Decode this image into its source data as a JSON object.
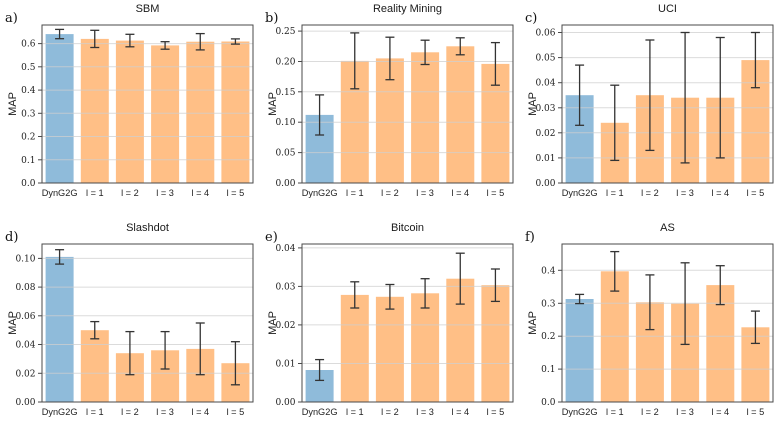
{
  "figure": {
    "ylabel": "MAP",
    "colors": {
      "bar_highlight": "#8fbbda",
      "bar_default": "#ffbf86",
      "error": "#333333",
      "grid": "#cfcfcf",
      "spine": "#4a4a4a"
    }
  },
  "chart_data": [
    {
      "type": "bar",
      "letter": "a)",
      "title": "SBM",
      "ylabel": "MAP",
      "categories": [
        "DynG2G",
        "l = 1",
        "l = 2",
        "l = 3",
        "l = 4",
        "l = 5"
      ],
      "values": [
        0.641,
        0.62,
        0.613,
        0.592,
        0.608,
        0.609
      ],
      "errors": [
        0.02,
        0.037,
        0.027,
        0.016,
        0.035,
        0.011
      ],
      "yticks": [
        0.0,
        0.1,
        0.2,
        0.3,
        0.4,
        0.5,
        0.6
      ],
      "ylim": [
        0,
        0.68
      ],
      "decimals": 1,
      "grid": true,
      "legend": "none"
    },
    {
      "type": "bar",
      "letter": "b)",
      "title": "Reality Mining",
      "ylabel": "MAP",
      "categories": [
        "DynG2G",
        "l = 1",
        "l = 2",
        "l = 3",
        "l = 4",
        "l = 5"
      ],
      "values": [
        0.112,
        0.201,
        0.205,
        0.215,
        0.225,
        0.196
      ],
      "errors": [
        0.033,
        0.046,
        0.035,
        0.02,
        0.014,
        0.035
      ],
      "yticks": [
        0.0,
        0.05,
        0.1,
        0.15,
        0.2,
        0.25
      ],
      "ylim": [
        0,
        0.26
      ],
      "decimals": 2,
      "grid": true,
      "legend": "none"
    },
    {
      "type": "bar",
      "letter": "c)",
      "title": "UCI",
      "ylabel": "MAP",
      "categories": [
        "DynG2G",
        "l = 1",
        "l = 2",
        "l = 3",
        "l = 4",
        "l = 5"
      ],
      "values": [
        0.035,
        0.024,
        0.035,
        0.034,
        0.034,
        0.049
      ],
      "errors": [
        0.012,
        0.015,
        0.022,
        0.026,
        0.024,
        0.011
      ],
      "yticks": [
        0.0,
        0.01,
        0.02,
        0.03,
        0.04,
        0.05,
        0.06
      ],
      "ylim": [
        0,
        0.063
      ],
      "decimals": 2,
      "grid": true,
      "legend": "none"
    },
    {
      "type": "bar",
      "letter": "d)",
      "title": "Slashdot",
      "ylabel": "MAP",
      "categories": [
        "DynG2G",
        "l = 1",
        "l = 2",
        "l = 3",
        "l = 4",
        "l = 5"
      ],
      "values": [
        0.101,
        0.05,
        0.034,
        0.036,
        0.037,
        0.027
      ],
      "errors": [
        0.005,
        0.006,
        0.015,
        0.013,
        0.018,
        0.015
      ],
      "yticks": [
        0.0,
        0.02,
        0.04,
        0.06,
        0.08,
        0.1
      ],
      "ylim": [
        0,
        0.11
      ],
      "decimals": 2,
      "grid": true,
      "legend": "none"
    },
    {
      "type": "bar",
      "letter": "e)",
      "title": "Bitcoin",
      "ylabel": "MAP",
      "categories": [
        "DynG2G",
        "l = 1",
        "l = 2",
        "l = 3",
        "l = 4",
        "l = 5"
      ],
      "values": [
        0.0083,
        0.0278,
        0.0273,
        0.0282,
        0.032,
        0.0303
      ],
      "errors": [
        0.0027,
        0.0034,
        0.0032,
        0.0038,
        0.0066,
        0.0042
      ],
      "yticks": [
        0.0,
        0.01,
        0.02,
        0.03,
        0.04
      ],
      "ylim": [
        0,
        0.041
      ],
      "decimals": 2,
      "grid": true,
      "legend": "none"
    },
    {
      "type": "bar",
      "letter": "f)",
      "title": "AS",
      "ylabel": "MAP",
      "categories": [
        "DynG2G",
        "l = 1",
        "l = 2",
        "l = 3",
        "l = 4",
        "l = 5"
      ],
      "values": [
        0.313,
        0.397,
        0.303,
        0.299,
        0.355,
        0.227
      ],
      "errors": [
        0.014,
        0.06,
        0.083,
        0.124,
        0.059,
        0.049
      ],
      "yticks": [
        0.0,
        0.1,
        0.2,
        0.3,
        0.4
      ],
      "ylim": [
        0,
        0.48
      ],
      "decimals": 1,
      "grid": true,
      "legend": "none"
    }
  ]
}
